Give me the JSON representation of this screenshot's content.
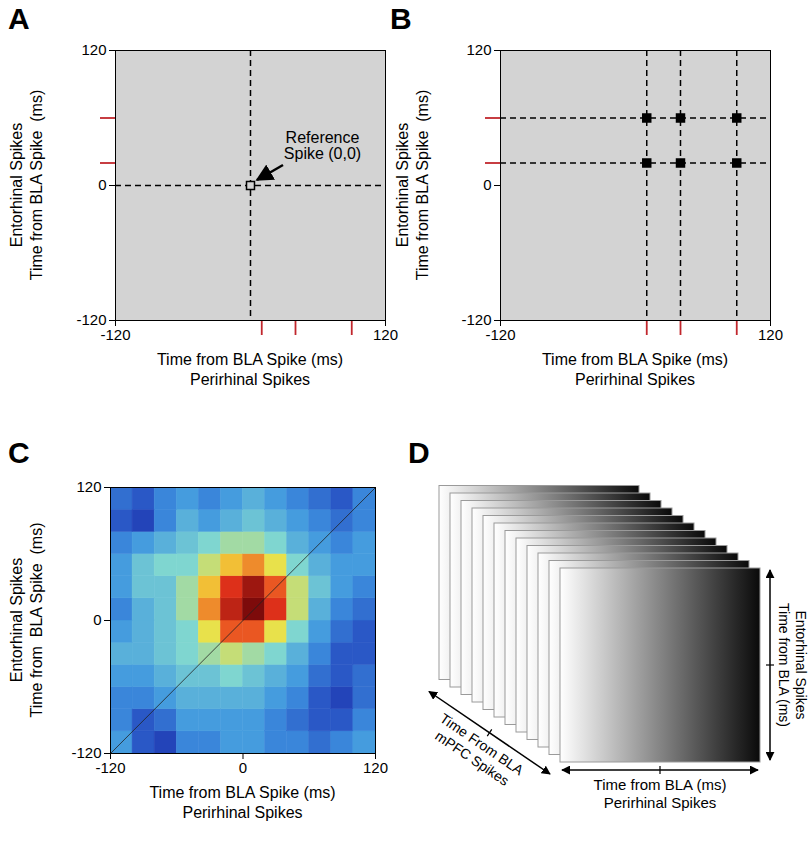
{
  "chart_data": [
    {
      "panel": "A",
      "type": "scatter",
      "xlabel": [
        "Time from BLA Spike (ms)",
        "Perirhinal Spikes"
      ],
      "ylabel": [
        "Entorhinal Spikes",
        "Time from BLA Spike  (ms)"
      ],
      "xlim": [
        -120,
        120
      ],
      "ylim": [
        -120,
        120
      ],
      "xticks": [
        -120,
        120
      ],
      "yticks": [
        -120,
        0,
        120
      ],
      "perirhinal_spikes": [
        10,
        40,
        90
      ],
      "entorhinal_spikes": [
        20,
        60
      ],
      "reference_spike": [
        0,
        0
      ],
      "annotation": [
        "Reference",
        "Spike (0,0)"
      ]
    },
    {
      "panel": "B",
      "type": "scatter",
      "marker": "square",
      "xlabel": [
        "Time from BLA Spike (ms)",
        "Perirhinal Spikes"
      ],
      "ylabel": [
        "Entorhinal Spikes",
        "Time from BLA Spike  (ms)"
      ],
      "xlim": [
        -120,
        120
      ],
      "ylim": [
        -120,
        120
      ],
      "xticks": [
        -120,
        120
      ],
      "yticks": [
        -120,
        0,
        120
      ],
      "perirhinal_spikes": [
        10,
        40,
        90
      ],
      "entorhinal_spikes": [
        20,
        60
      ]
    },
    {
      "panel": "C",
      "type": "heatmap",
      "xlabel": [
        "Time from BLA Spike (ms)",
        "Perirhinal Spikes"
      ],
      "ylabel": [
        "Entorhinal Spikes",
        "Time from  BLA Spike  (ms)"
      ],
      "xlim": [
        -120,
        120
      ],
      "ylim": [
        -120,
        120
      ],
      "xticks": [
        -120,
        0,
        120
      ],
      "yticks": [
        -120,
        0,
        120
      ],
      "xbins": [
        -120,
        -100,
        -80,
        -60,
        -40,
        -20,
        0,
        20,
        40,
        60,
        80,
        100,
        120
      ],
      "ybins": [
        -120,
        -100,
        -80,
        -60,
        -40,
        -20,
        0,
        20,
        40,
        60,
        80,
        100,
        120
      ],
      "zlim": [
        0,
        1
      ],
      "z": [
        [
          0.35,
          0.2,
          0.15,
          0.3,
          0.3,
          0.35,
          0.35,
          0.3,
          0.3,
          0.25,
          0.3,
          0.35
        ],
        [
          0.3,
          0.2,
          0.25,
          0.35,
          0.35,
          0.35,
          0.35,
          0.3,
          0.25,
          0.2,
          0.2,
          0.3
        ],
        [
          0.3,
          0.3,
          0.35,
          0.4,
          0.4,
          0.4,
          0.4,
          0.35,
          0.3,
          0.2,
          0.15,
          0.25
        ],
        [
          0.35,
          0.35,
          0.4,
          0.45,
          0.45,
          0.5,
          0.45,
          0.4,
          0.35,
          0.25,
          0.2,
          0.25
        ],
        [
          0.4,
          0.4,
          0.45,
          0.5,
          0.55,
          0.6,
          0.55,
          0.5,
          0.4,
          0.3,
          0.2,
          0.2
        ],
        [
          0.35,
          0.4,
          0.45,
          0.5,
          0.65,
          0.8,
          0.8,
          0.65,
          0.5,
          0.35,
          0.25,
          0.2
        ],
        [
          0.3,
          0.4,
          0.45,
          0.55,
          0.75,
          0.9,
          1.0,
          0.85,
          0.6,
          0.4,
          0.3,
          0.25
        ],
        [
          0.35,
          0.45,
          0.45,
          0.55,
          0.7,
          0.85,
          0.95,
          0.8,
          0.6,
          0.45,
          0.35,
          0.3
        ],
        [
          0.35,
          0.45,
          0.5,
          0.5,
          0.6,
          0.7,
          0.75,
          0.65,
          0.5,
          0.4,
          0.35,
          0.35
        ],
        [
          0.3,
          0.35,
          0.4,
          0.45,
          0.5,
          0.55,
          0.55,
          0.5,
          0.4,
          0.35,
          0.3,
          0.35
        ],
        [
          0.2,
          0.15,
          0.3,
          0.4,
          0.35,
          0.4,
          0.45,
          0.4,
          0.35,
          0.3,
          0.25,
          0.3
        ],
        [
          0.25,
          0.2,
          0.3,
          0.35,
          0.3,
          0.35,
          0.4,
          0.35,
          0.3,
          0.25,
          0.2,
          0.3
        ]
      ]
    }
  ],
  "diagram": {
    "panel": "D",
    "x_labels": [
      "Time from BLA (ms)",
      "Perirhinal Spikes"
    ],
    "y_labels": [
      "Time from BLA (ms)",
      "Entorhinal Spikes"
    ],
    "z_labels": [
      "Time From BLA",
      "mPFC Spikes"
    ]
  }
}
